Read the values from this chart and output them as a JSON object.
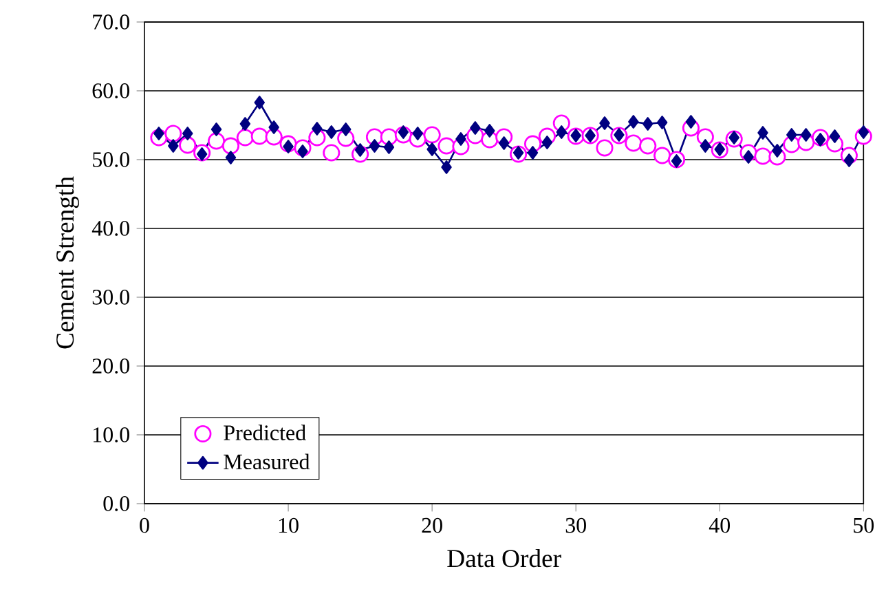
{
  "chart_data": {
    "type": "scatter",
    "xlabel": "Data Order",
    "ylabel": "Cement Strength",
    "x": [
      1,
      2,
      3,
      4,
      5,
      6,
      7,
      8,
      9,
      10,
      11,
      12,
      13,
      14,
      15,
      16,
      17,
      18,
      19,
      20,
      21,
      22,
      23,
      24,
      25,
      26,
      27,
      28,
      29,
      30,
      31,
      32,
      33,
      34,
      35,
      36,
      37,
      38,
      39,
      40,
      41,
      42,
      43,
      44,
      45,
      46,
      47,
      48,
      49,
      50
    ],
    "series": [
      {
        "name": "Predicted",
        "marker": "circle",
        "color": "#ff00ff",
        "values": [
          53.2,
          53.8,
          52.1,
          51.0,
          52.7,
          52.0,
          53.2,
          53.4,
          53.3,
          52.3,
          51.7,
          53.2,
          51.0,
          53.1,
          50.8,
          53.3,
          53.3,
          53.6,
          53.0,
          53.6,
          52.0,
          51.9,
          53.5,
          52.9,
          53.3,
          50.8,
          52.3,
          53.4,
          55.3,
          53.4,
          53.5,
          51.7,
          53.5,
          52.4,
          52.0,
          50.6,
          50.0,
          54.6,
          53.3,
          51.4,
          53.0,
          51.0,
          50.5,
          50.4,
          52.2,
          52.5,
          53.2,
          52.3,
          50.6,
          53.4
        ]
      },
      {
        "name": "Measured",
        "type": "line",
        "marker": "diamond",
        "color": "#000080",
        "values": [
          53.8,
          52.0,
          53.8,
          50.8,
          54.4,
          50.3,
          55.2,
          58.3,
          54.7,
          51.9,
          51.2,
          54.5,
          54.0,
          54.4,
          51.4,
          52.0,
          51.8,
          54.0,
          53.8,
          51.5,
          48.9,
          53.0,
          54.6,
          54.2,
          52.4,
          51.0,
          51.0,
          52.5,
          54.0,
          53.5,
          53.5,
          55.3,
          53.6,
          55.5,
          55.2,
          55.4,
          49.8,
          55.5,
          52.0,
          51.5,
          53.2,
          50.4,
          53.9,
          51.3,
          53.6,
          53.6,
          52.9,
          53.4,
          49.9,
          54.0
        ]
      }
    ],
    "xlim": [
      0,
      50
    ],
    "xticks": [
      0,
      10,
      20,
      30,
      40,
      50
    ],
    "ylim": [
      0,
      70
    ],
    "yticks": [
      {
        "value": 0,
        "label": "0.0"
      },
      {
        "value": 10,
        "label": "10.0"
      },
      {
        "value": 20,
        "label": "20.0"
      },
      {
        "value": 30,
        "label": "30.0"
      },
      {
        "value": 40,
        "label": "40.0"
      },
      {
        "value": 50,
        "label": "50.0"
      },
      {
        "value": 60,
        "label": "60.0"
      },
      {
        "value": 70,
        "label": "70.0"
      }
    ],
    "grid": "y",
    "legend": "bottom left"
  }
}
